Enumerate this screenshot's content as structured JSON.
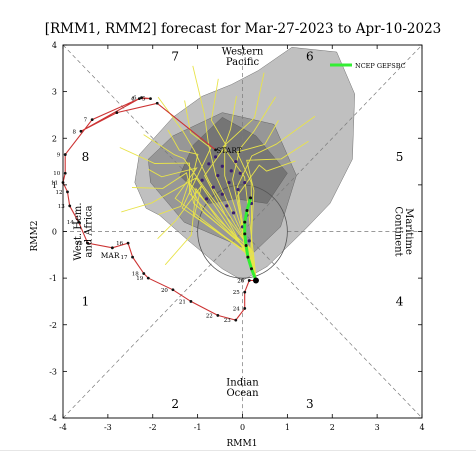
{
  "chart_data": {
    "type": "scatter",
    "title": "[RMM1, RMM2] forecast for Mar-27-2023 to Apr-10-2023",
    "xlabel": "RMM1",
    "ylabel": "RMM2",
    "xlim": [
      -4,
      4
    ],
    "ylim": [
      -4,
      4
    ],
    "x_ticks": [
      -4,
      -3,
      -2,
      -1,
      0,
      1,
      2,
      3,
      4
    ],
    "y_ticks": [
      -4,
      -3,
      -2,
      -1,
      0,
      1,
      2,
      3,
      4
    ],
    "grid": false,
    "legend": {
      "placement": "top-right",
      "entries": [
        "NCEP GEFSBC"
      ]
    },
    "colors": {
      "observed": "#cc3333",
      "members": "#e8e34a",
      "ensemble_mean": "#33ee33",
      "plume_outer": "#bdbdbd",
      "plume_inner": "#8f8f8f",
      "plume_core": "#6e6e6e",
      "member_dots": "#3b1f6e"
    },
    "phase_labels": [
      {
        "text": "1",
        "x": -3.5,
        "y": -1.5
      },
      {
        "text": "2",
        "x": -1.5,
        "y": -3.7
      },
      {
        "text": "3",
        "x": 1.5,
        "y": -3.7
      },
      {
        "text": "4",
        "x": 3.5,
        "y": -1.5
      },
      {
        "text": "5",
        "x": 3.5,
        "y": 1.6
      },
      {
        "text": "6",
        "x": 1.5,
        "y": 3.75
      },
      {
        "text": "7",
        "x": -1.5,
        "y": 3.75
      },
      {
        "text": "8",
        "x": -3.5,
        "y": 1.6
      }
    ],
    "region_labels": [
      {
        "lines": [
          "Western",
          "Pacific"
        ],
        "x": 0,
        "y": 3.75,
        "rotate": 0
      },
      {
        "lines": [
          "Indian",
          "Ocean"
        ],
        "x": 0,
        "y": -3.35,
        "rotate": 0
      },
      {
        "lines": [
          "West. Hem.",
          "and Africa"
        ],
        "x": -3.55,
        "y": 0,
        "rotate": -90
      },
      {
        "lines": [
          "Maritime",
          "Continent"
        ],
        "x": 3.6,
        "y": 0,
        "rotate": 90
      }
    ],
    "annotations": [
      {
        "text": "MAR",
        "x": -2.95,
        "y": -0.5
      },
      {
        "text": "START",
        "x": -0.3,
        "y": 1.75
      }
    ],
    "observed": {
      "name": "",
      "points": [
        {
          "x": -0.6,
          "y": 1.75
        },
        {
          "x": -1.9,
          "y": 2.75
        },
        {
          "x": -2.8,
          "y": 2.55
        },
        {
          "x": -3.6,
          "y": 2.15
        },
        {
          "x": -2.3,
          "y": 2.85
        },
        {
          "x": -2.05,
          "y": 2.85
        },
        {
          "x": -2.25,
          "y": 2.87
        },
        {
          "x": -3.35,
          "y": 2.4
        },
        {
          "x": -3.95,
          "y": 1.65
        },
        {
          "x": -3.95,
          "y": 1.25
        },
        {
          "x": -4.0,
          "y": 1.05
        },
        {
          "x": -3.9,
          "y": 0.85
        },
        {
          "x": -3.85,
          "y": 0.55
        },
        {
          "x": -3.65,
          "y": 0.2
        },
        {
          "x": -3.45,
          "y": -0.25
        },
        {
          "x": -2.9,
          "y": -0.35
        },
        {
          "x": -2.55,
          "y": -0.25
        },
        {
          "x": -2.45,
          "y": -0.55
        },
        {
          "x": -2.2,
          "y": -0.9
        },
        {
          "x": -2.1,
          "y": -1.0
        },
        {
          "x": -1.55,
          "y": -1.25
        },
        {
          "x": -1.15,
          "y": -1.5
        },
        {
          "x": -0.55,
          "y": -1.8
        },
        {
          "x": -0.15,
          "y": -1.9
        },
        {
          "x": 0.05,
          "y": -1.65
        },
        {
          "x": 0.05,
          "y": -1.3
        },
        {
          "x": 0.15,
          "y": -1.05
        },
        {
          "x": 0.3,
          "y": -1.05
        }
      ],
      "labels": [
        {
          "text": "4",
          "x": -2.3,
          "y": 2.85
        },
        {
          "text": "5",
          "x": -2.05,
          "y": 2.85
        },
        {
          "text": "6",
          "x": -2.25,
          "y": 2.87
        },
        {
          "text": "7",
          "x": -3.35,
          "y": 2.4
        },
        {
          "text": "8",
          "x": -3.6,
          "y": 2.15
        },
        {
          "text": "9",
          "x": -3.95,
          "y": 1.65
        },
        {
          "text": "10",
          "x": -3.95,
          "y": 1.25
        },
        {
          "text": "11",
          "x": -4.0,
          "y": 1.05
        },
        {
          "text": "12",
          "x": -3.9,
          "y": 0.85
        },
        {
          "text": "13",
          "x": -3.85,
          "y": 0.55
        },
        {
          "text": "14",
          "x": -3.65,
          "y": 0.2
        },
        {
          "text": "15",
          "x": -3.45,
          "y": -0.25
        },
        {
          "text": "16",
          "x": -2.55,
          "y": -0.25
        },
        {
          "text": "17",
          "x": -2.45,
          "y": -0.55
        },
        {
          "text": "18",
          "x": -2.2,
          "y": -0.9
        },
        {
          "text": "19",
          "x": -2.1,
          "y": -1.0
        },
        {
          "text": "20",
          "x": -1.55,
          "y": -1.25
        },
        {
          "text": "21",
          "x": -1.15,
          "y": -1.5
        },
        {
          "text": "22",
          "x": -0.55,
          "y": -1.8
        },
        {
          "text": "23",
          "x": -0.15,
          "y": -1.9
        },
        {
          "text": "24",
          "x": 0.05,
          "y": -1.65
        },
        {
          "text": "25",
          "x": 0.05,
          "y": -1.3
        },
        {
          "text": "26",
          "x": 0.15,
          "y": -1.05
        }
      ]
    },
    "ensemble_mean": {
      "name": "NCEP GEFSBC",
      "points": [
        {
          "x": 0.3,
          "y": -1.05
        },
        {
          "x": 0.2,
          "y": -0.8
        },
        {
          "x": 0.12,
          "y": -0.55
        },
        {
          "x": 0.08,
          "y": -0.3
        },
        {
          "x": 0.05,
          "y": -0.05
        },
        {
          "x": 0.05,
          "y": 0.2
        },
        {
          "x": 0.1,
          "y": 0.45
        },
        {
          "x": 0.18,
          "y": 0.72
        }
      ]
    },
    "member_dots": [
      {
        "x": -0.75,
        "y": 1.45
      },
      {
        "x": -0.6,
        "y": 1.6
      },
      {
        "x": -0.45,
        "y": 1.4
      },
      {
        "x": -0.55,
        "y": 1.2
      },
      {
        "x": -0.25,
        "y": 1.3
      },
      {
        "x": -0.15,
        "y": 1.5
      },
      {
        "x": -0.05,
        "y": 1.25
      },
      {
        "x": -0.3,
        "y": 1.05
      },
      {
        "x": -0.65,
        "y": 0.95
      },
      {
        "x": -0.9,
        "y": 1.1
      },
      {
        "x": -0.45,
        "y": 0.8
      },
      {
        "x": -0.1,
        "y": 0.9
      },
      {
        "x": 0.05,
        "y": 1.05
      },
      {
        "x": -0.8,
        "y": 0.7
      },
      {
        "x": -0.35,
        "y": 0.55
      },
      {
        "x": 0.2,
        "y": 0.6
      },
      {
        "x": 0.1,
        "y": 0.35
      },
      {
        "x": -0.2,
        "y": 0.4
      },
      {
        "x": 0.0,
        "y": 0.1
      },
      {
        "x": 0.15,
        "y": -0.2
      }
    ],
    "plumes": [
      {
        "level": "outer",
        "x": [
          1.1,
          2.1,
          2.5,
          2.45,
          1.95,
          1.4,
          0.55,
          0.0,
          -0.45,
          -1.2,
          -1.85,
          -2.15,
          -2.4,
          -2.3,
          -1.55,
          -0.9,
          -0.25,
          0.35,
          1.1
        ],
        "y": [
          3.95,
          3.85,
          2.95,
          1.55,
          0.6,
          0.05,
          -0.75,
          -1.05,
          -0.8,
          -0.2,
          0.35,
          0.5,
          1.05,
          1.65,
          2.45,
          2.9,
          3.15,
          3.45,
          3.95
        ]
      },
      {
        "level": "inner",
        "x": [
          -0.45,
          0.7,
          1.2,
          0.85,
          0.25,
          -0.45,
          -1.3,
          -2.05,
          -2.1,
          -1.55,
          -0.45
        ],
        "y": [
          2.55,
          2.3,
          1.2,
          0.1,
          -0.45,
          -0.15,
          0.2,
          1.05,
          1.55,
          2.05,
          2.55
        ]
      },
      {
        "level": "core",
        "x": [
          -0.45,
          0.3,
          1.0,
          0.55,
          -0.15,
          -0.75,
          -1.4,
          -1.1,
          -0.45
        ],
        "y": [
          2.45,
          2.05,
          1.25,
          0.6,
          0.7,
          0.6,
          1.2,
          1.85,
          2.45
        ]
      }
    ],
    "members_series_count": 20
  }
}
